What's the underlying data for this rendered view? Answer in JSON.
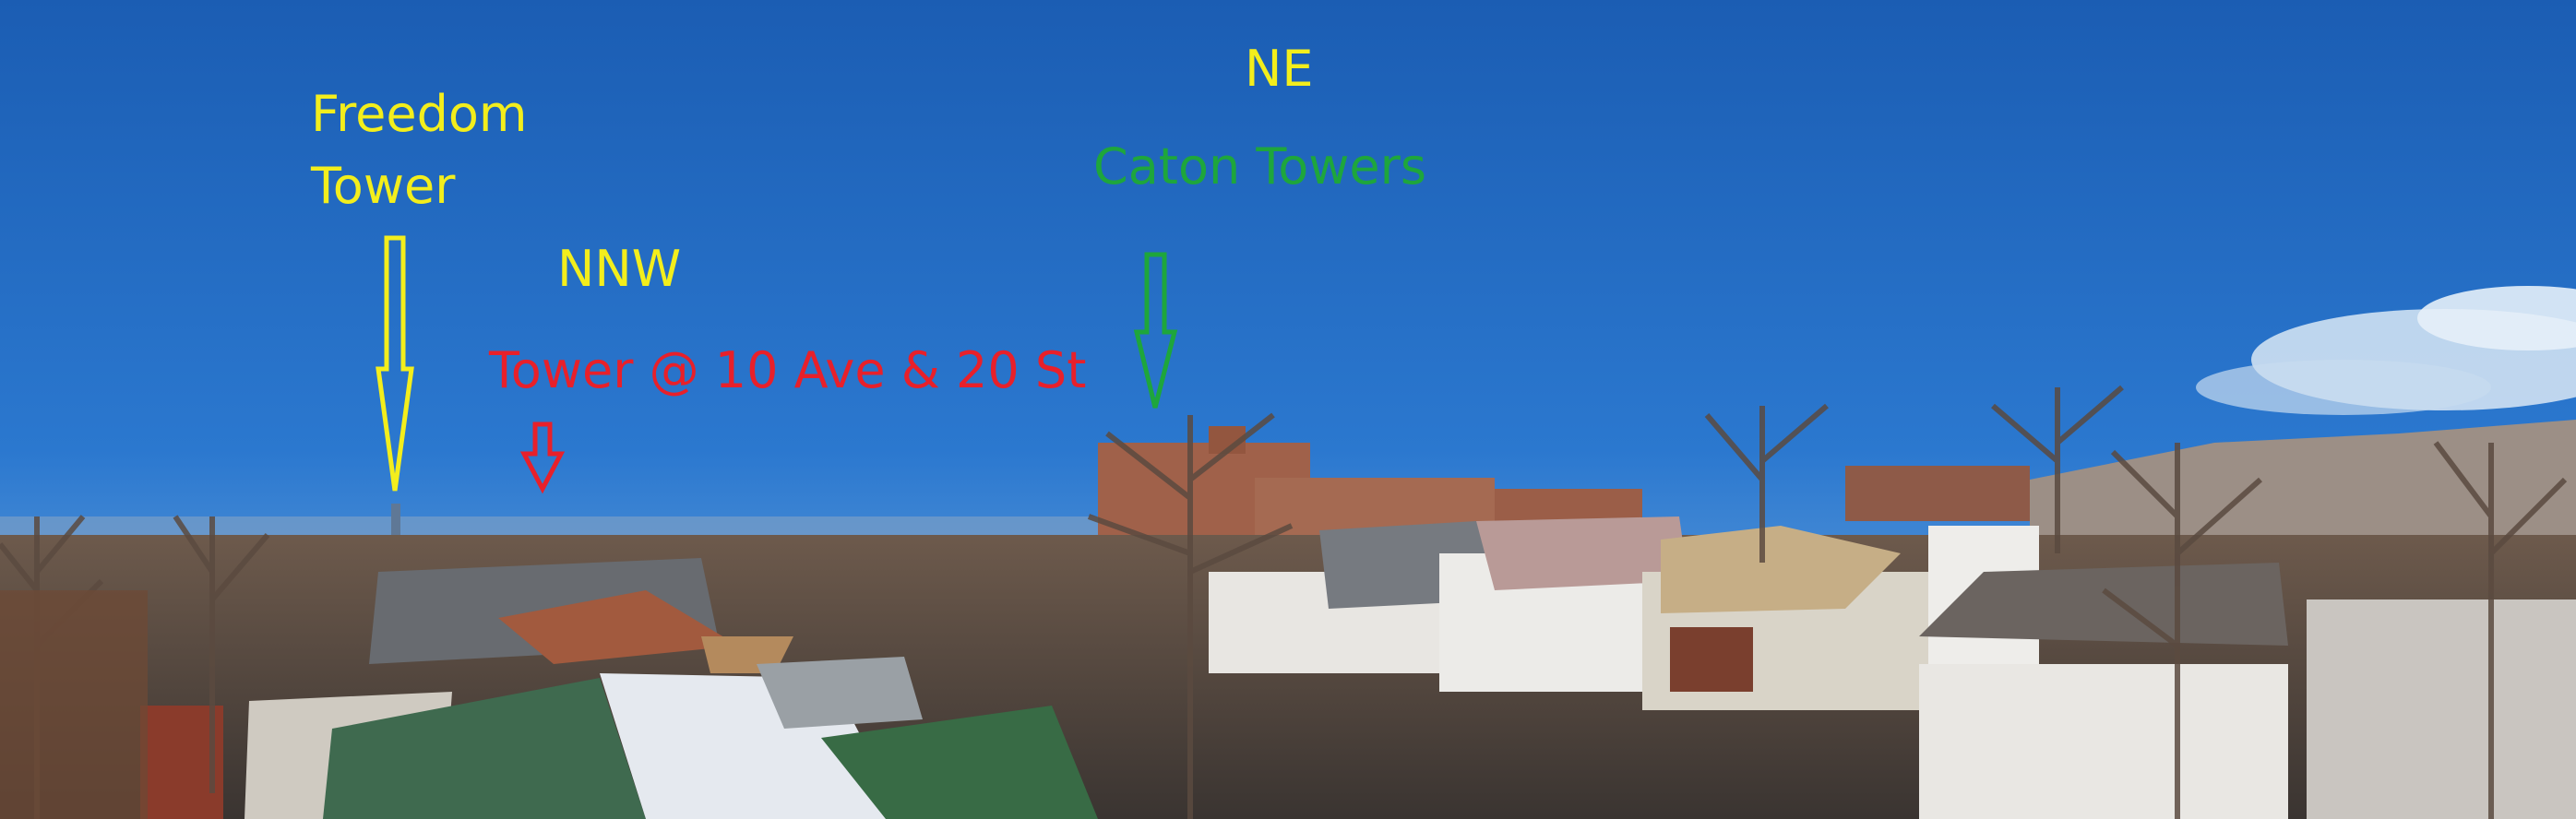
{
  "labels": {
    "freedom_line1": "Freedom",
    "freedom_line2": "Tower",
    "nnw": "NNW",
    "tower_10ave": "Tower @ 10 Ave & 20 St",
    "ne": "NE",
    "caton_towers": "Caton Towers"
  },
  "colors": {
    "yellow": "#f3ee1c",
    "green": "#1ea63c",
    "red": "#e8202a",
    "sky_top": "#1a5fb4",
    "sky_bottom": "#6fa8de"
  },
  "arrows": [
    "freedom-tower-arrow",
    "tower-10ave-arrow",
    "caton-towers-arrow"
  ]
}
